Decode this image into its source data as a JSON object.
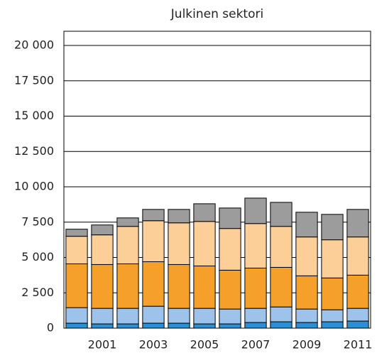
{
  "chart_data": {
    "type": "stacked-bar",
    "title": "Julkinen sektori",
    "categories": [
      null,
      "2001",
      null,
      "2003",
      null,
      "2005",
      null,
      "2007",
      null,
      "2009",
      null,
      "2011"
    ],
    "series": [
      {
        "color": "#2a8fd4",
        "values": [
          350,
          300,
          300,
          350,
          350,
          300,
          300,
          400,
          450,
          400,
          450,
          500
        ]
      },
      {
        "color": "#9dc3ea",
        "values": [
          1100,
          1100,
          1100,
          1200,
          1050,
          1100,
          1050,
          1000,
          1050,
          950,
          850,
          900
        ]
      },
      {
        "color": "#f5a02a",
        "values": [
          3100,
          3100,
          3150,
          3150,
          3100,
          3000,
          2750,
          2850,
          2800,
          2350,
          2250,
          2350
        ]
      },
      {
        "color": "#fdcf98",
        "values": [
          1950,
          2100,
          2650,
          2900,
          2950,
          3150,
          2950,
          3150,
          2900,
          2750,
          2700,
          2700
        ]
      },
      {
        "color": "#9c9c9c",
        "values": [
          500,
          700,
          600,
          800,
          950,
          1250,
          1450,
          1800,
          1700,
          1750,
          1800,
          1950
        ]
      }
    ],
    "ylim": [
      0,
      20000
    ],
    "yticks": [
      0,
      {
        "value": 2500,
        "label": "2 500"
      },
      {
        "value": 5000,
        "label": "5 000"
      },
      {
        "value": 7500,
        "label": "7 500"
      },
      {
        "value": 10000,
        "label": "10 000"
      },
      {
        "value": 12500,
        "label": "12 500"
      },
      {
        "value": 15000,
        "label": "15 000"
      },
      {
        "value": 17500,
        "label": "17 500"
      },
      {
        "value": 20000,
        "label": "20 000"
      }
    ],
    "grid": true
  }
}
